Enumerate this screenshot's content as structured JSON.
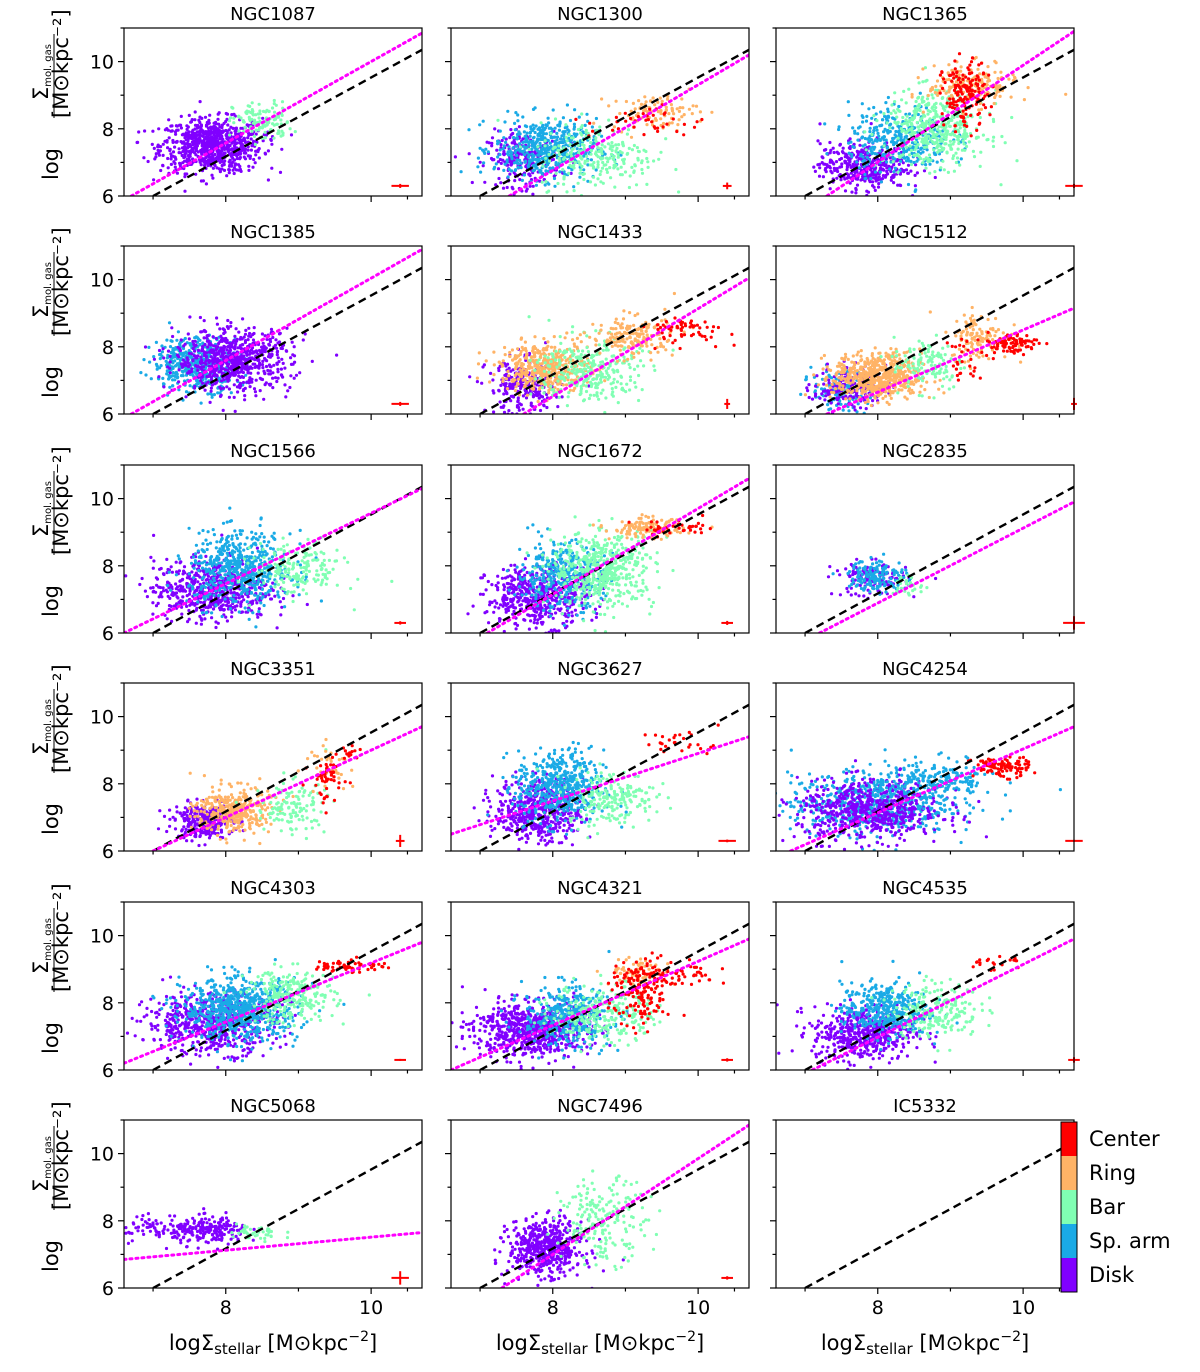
{
  "chart_data": {
    "type": "scatter",
    "xlabel": "logΣstellar [M⊙kpc⁻²]",
    "xlabel_parts": {
      "base": "logΣ",
      "sub": "stellar",
      "rest": " [M⊙kpc",
      "sup": "−2",
      "end": "]"
    },
    "ylabel_parts": {
      "log": "log",
      "num": "Σ",
      "num_sub": "mol. gas",
      "den": "[M⊙kpc⁻²]"
    },
    "xlim": [
      6.6,
      10.7
    ],
    "ylim": [
      6,
      11
    ],
    "xticks": [
      8,
      10
    ],
    "xtick_labels": [
      "8",
      "10"
    ],
    "yticks": [
      6,
      8,
      10
    ],
    "ytick_labels": [
      "6",
      "8",
      "10"
    ],
    "reference_line": {
      "style": "dashed",
      "color": "#000000",
      "x0": 7.0,
      "y0": 6.0,
      "x1": 10.7,
      "y1": 10.35
    },
    "legend": {
      "type": "colorbar",
      "entries": [
        {
          "label": "Center",
          "color": "#ff0000"
        },
        {
          "label": "Ring",
          "color": "#ffb366"
        },
        {
          "label": "Bar",
          "color": "#80ffb3"
        },
        {
          "label": "Sp. arm",
          "color": "#1aaae6"
        },
        {
          "label": "Disk",
          "color": "#8000ff"
        }
      ]
    },
    "panels": [
      {
        "name": "NGC1087",
        "fit": [
          6.7,
          6.0,
          10.7,
          10.85
        ],
        "err": [
          10.4,
          6.3,
          0.12,
          0.06
        ],
        "clusters": [
          [
            "Disk",
            7.8,
            7.5,
            0.35,
            0.4,
            800
          ],
          [
            "Bar",
            8.5,
            8.2,
            0.2,
            0.3,
            120
          ]
        ]
      },
      {
        "name": "NGC1300",
        "fit": [
          7.4,
          6.0,
          10.7,
          10.2
        ],
        "err": [
          10.4,
          6.3,
          0.06,
          0.1
        ],
        "clusters": [
          [
            "Disk",
            7.6,
            7.1,
            0.25,
            0.4,
            250
          ],
          [
            "Sp. arm",
            7.9,
            7.4,
            0.35,
            0.45,
            500
          ],
          [
            "Bar",
            8.6,
            7.2,
            0.4,
            0.5,
            250
          ],
          [
            "Ring",
            9.4,
            8.5,
            0.3,
            0.25,
            100
          ],
          [
            "Center",
            9.3,
            8.2,
            0.4,
            0.25,
            40
          ]
        ]
      },
      {
        "name": "NGC1365",
        "fit": [
          7.3,
          6.0,
          10.7,
          10.9
        ],
        "err": [
          10.7,
          6.3,
          0.12,
          0.06
        ],
        "clusters": [
          [
            "Disk",
            7.8,
            6.9,
            0.3,
            0.35,
            400
          ],
          [
            "Sp. arm",
            8.3,
            7.7,
            0.35,
            0.5,
            350
          ],
          [
            "Bar",
            8.8,
            8.0,
            0.35,
            0.55,
            450
          ],
          [
            "Ring",
            9.3,
            9.3,
            0.3,
            0.3,
            180
          ],
          [
            "Center",
            9.2,
            9.0,
            0.15,
            0.5,
            160
          ]
        ]
      },
      {
        "name": "NGC1385",
        "fit": [
          6.7,
          6.0,
          10.7,
          10.9
        ],
        "err": [
          10.4,
          6.3,
          0.12,
          0.06
        ],
        "clusters": [
          [
            "Sp. arm",
            7.6,
            7.5,
            0.3,
            0.4,
            450
          ],
          [
            "Disk",
            8.1,
            7.6,
            0.4,
            0.45,
            700
          ]
        ]
      },
      {
        "name": "NGC1433",
        "fit": [
          7.6,
          6.0,
          10.7,
          10.05
        ],
        "err": [
          10.4,
          6.3,
          0.04,
          0.15
        ],
        "clusters": [
          [
            "Disk",
            7.6,
            6.8,
            0.25,
            0.4,
            250
          ],
          [
            "Ring",
            7.9,
            7.4,
            0.3,
            0.35,
            450
          ],
          [
            "Bar",
            8.5,
            7.3,
            0.35,
            0.5,
            300
          ],
          [
            "Ring",
            9.1,
            8.3,
            0.3,
            0.3,
            180
          ],
          [
            "Center",
            9.8,
            8.5,
            0.3,
            0.2,
            60
          ]
        ]
      },
      {
        "name": "NGC1512",
        "fit": [
          7.3,
          6.0,
          10.7,
          9.15
        ],
        "err": [
          10.7,
          6.3,
          0.04,
          0.18
        ],
        "clusters": [
          [
            "Sp. arm",
            7.5,
            6.7,
            0.2,
            0.3,
            150
          ],
          [
            "Disk",
            7.6,
            6.8,
            0.25,
            0.3,
            150
          ],
          [
            "Ring",
            8.0,
            7.1,
            0.3,
            0.35,
            600
          ],
          [
            "Bar",
            8.7,
            7.5,
            0.25,
            0.4,
            120
          ],
          [
            "Ring",
            9.4,
            8.3,
            0.2,
            0.35,
            120
          ],
          [
            "Center",
            9.8,
            8.1,
            0.2,
            0.15,
            90
          ],
          [
            "Center",
            9.2,
            7.5,
            0.1,
            0.4,
            25
          ]
        ]
      },
      {
        "name": "NGC1566",
        "fit": [
          6.6,
          6.0,
          10.7,
          10.3
        ],
        "err": [
          10.4,
          6.3,
          0.08,
          0.05
        ],
        "clusters": [
          [
            "Disk",
            7.8,
            7.3,
            0.4,
            0.45,
            600
          ],
          [
            "Sp. arm",
            8.2,
            7.9,
            0.35,
            0.55,
            550
          ],
          [
            "Bar",
            9.0,
            7.9,
            0.3,
            0.4,
            180
          ]
        ]
      },
      {
        "name": "NGC1672",
        "fit": [
          7.1,
          6.0,
          10.7,
          10.6
        ],
        "err": [
          10.4,
          6.3,
          0.08,
          0.06
        ],
        "clusters": [
          [
            "Disk",
            7.8,
            7.1,
            0.35,
            0.45,
            500
          ],
          [
            "Sp. arm",
            8.1,
            7.7,
            0.3,
            0.5,
            350
          ],
          [
            "Bar",
            8.7,
            7.9,
            0.35,
            0.55,
            500
          ],
          [
            "Ring",
            9.3,
            9.1,
            0.25,
            0.15,
            120
          ],
          [
            "Center",
            9.7,
            9.1,
            0.3,
            0.12,
            40
          ]
        ]
      },
      {
        "name": "NGC2835",
        "fit": [
          7.2,
          6.0,
          10.7,
          9.9
        ],
        "err": [
          10.7,
          6.3,
          0.15,
          0.2
        ],
        "clusters": [
          [
            "Disk",
            7.9,
            7.6,
            0.25,
            0.25,
            120
          ],
          [
            "Sp. arm",
            8.0,
            7.7,
            0.2,
            0.25,
            150
          ],
          [
            "Bar",
            8.4,
            7.4,
            0.15,
            0.15,
            30
          ]
        ]
      },
      {
        "name": "NGC3351",
        "fit": [
          7.0,
          6.0,
          10.7,
          9.7
        ],
        "err": [
          10.4,
          6.3,
          0.06,
          0.18
        ],
        "clusters": [
          [
            "Disk",
            7.7,
            6.9,
            0.2,
            0.25,
            300
          ],
          [
            "Ring",
            8.1,
            7.2,
            0.25,
            0.35,
            350
          ],
          [
            "Bar",
            8.9,
            7.3,
            0.25,
            0.4,
            120
          ],
          [
            "Ring",
            9.4,
            8.6,
            0.15,
            0.3,
            40
          ],
          [
            "Center",
            9.4,
            8.1,
            0.12,
            0.35,
            50
          ],
          [
            "Center",
            9.7,
            8.9,
            0.1,
            0.12,
            15
          ]
        ]
      },
      {
        "name": "NGC3627",
        "fit": [
          6.6,
          6.5,
          10.7,
          9.4
        ],
        "err": [
          10.4,
          6.3,
          0.12,
          0.04
        ],
        "clusters": [
          [
            "Disk",
            7.8,
            7.2,
            0.3,
            0.45,
            500
          ],
          [
            "Sp. arm",
            8.1,
            7.9,
            0.3,
            0.55,
            500
          ],
          [
            "Bar",
            8.8,
            7.6,
            0.3,
            0.4,
            200
          ],
          [
            "Center",
            9.8,
            9.2,
            0.3,
            0.2,
            30
          ]
        ]
      },
      {
        "name": "NGC4254",
        "fit": [
          6.8,
          6.0,
          10.7,
          9.7
        ],
        "err": [
          10.7,
          6.3,
          0.12,
          0.03
        ],
        "clusters": [
          [
            "Sp. arm",
            7.9,
            7.4,
            0.55,
            0.45,
            600
          ],
          [
            "Disk",
            7.9,
            7.2,
            0.5,
            0.45,
            600
          ],
          [
            "Sp. arm",
            8.8,
            8.1,
            0.4,
            0.3,
            200
          ],
          [
            "Center",
            9.7,
            8.5,
            0.2,
            0.15,
            100
          ]
        ]
      },
      {
        "name": "NGC4303",
        "fit": [
          6.6,
          6.2,
          10.7,
          9.8
        ],
        "err": [
          10.4,
          6.3,
          0.08,
          0.03
        ],
        "clusters": [
          [
            "Disk",
            7.8,
            7.4,
            0.45,
            0.45,
            600
          ],
          [
            "Sp. arm",
            8.2,
            7.8,
            0.4,
            0.45,
            700
          ],
          [
            "Bar",
            8.9,
            8.2,
            0.3,
            0.4,
            250
          ],
          [
            "Center",
            9.7,
            9.1,
            0.25,
            0.1,
            60
          ]
        ]
      },
      {
        "name": "NGC4321",
        "fit": [
          6.6,
          6.0,
          10.7,
          9.9
        ],
        "err": [
          10.4,
          6.3,
          0.08,
          0.05
        ],
        "clusters": [
          [
            "Disk",
            7.7,
            7.2,
            0.4,
            0.4,
            700
          ],
          [
            "Sp. arm",
            8.2,
            7.6,
            0.3,
            0.45,
            350
          ],
          [
            "Bar",
            8.7,
            7.7,
            0.35,
            0.45,
            250
          ],
          [
            "Ring",
            9.2,
            8.9,
            0.2,
            0.2,
            80
          ],
          [
            "Center",
            9.2,
            8.3,
            0.2,
            0.5,
            150
          ],
          [
            "Center",
            9.7,
            8.8,
            0.3,
            0.2,
            60
          ]
        ]
      },
      {
        "name": "NGC4535",
        "fit": [
          7.1,
          6.0,
          10.7,
          9.9
        ],
        "err": [
          10.7,
          6.3,
          0.08,
          0.08
        ],
        "clusters": [
          [
            "Disk",
            7.8,
            7.1,
            0.35,
            0.4,
            500
          ],
          [
            "Sp. arm",
            8.1,
            7.8,
            0.3,
            0.4,
            400
          ],
          [
            "Bar",
            8.8,
            7.8,
            0.3,
            0.4,
            200
          ],
          [
            "Center",
            9.6,
            9.2,
            0.2,
            0.12,
            20
          ]
        ]
      },
      {
        "name": "NGC5068",
        "fit": [
          6.6,
          6.85,
          10.7,
          7.65
        ],
        "err": [
          10.4,
          6.3,
          0.12,
          0.2
        ],
        "clusters": [
          [
            "Disk",
            7.0,
            7.8,
            0.3,
            0.2,
            80
          ],
          [
            "Disk",
            7.8,
            7.7,
            0.25,
            0.2,
            200
          ],
          [
            "Bar",
            8.4,
            7.6,
            0.2,
            0.15,
            40
          ]
        ]
      },
      {
        "name": "NGC7496",
        "fit": [
          7.3,
          6.0,
          10.7,
          10.85
        ],
        "err": [
          10.4,
          6.3,
          0.08,
          0.05
        ],
        "clusters": [
          [
            "Disk",
            7.9,
            7.2,
            0.25,
            0.4,
            550
          ],
          [
            "Bar",
            8.7,
            8.0,
            0.3,
            0.6,
            200
          ]
        ]
      },
      {
        "name": "IC5332",
        "fit": null,
        "err": null,
        "clusters": []
      }
    ]
  }
}
